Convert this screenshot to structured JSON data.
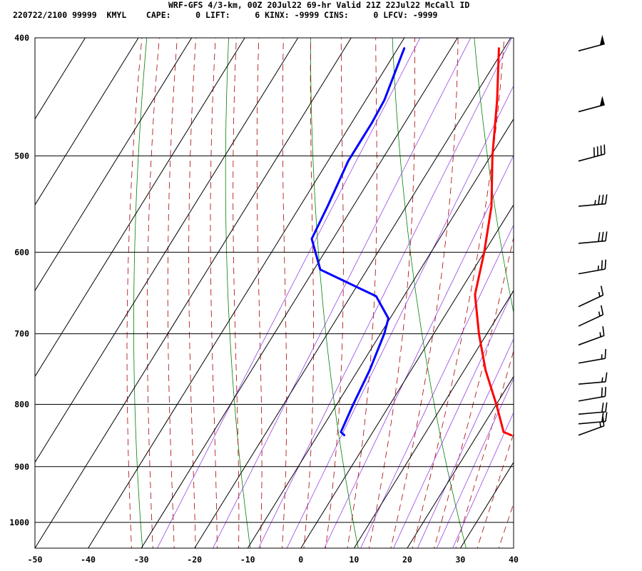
{
  "header": {
    "line1": "WRF-GFS 4/3-km, 00Z 20Jul22 69-hr Valid 21Z 22Jul22 McCall ID",
    "line2": "220722/2100 99999  KMYL    CAPE:     0 LIFT:     6 KINX: -9999 CINS:     0 LFCV: -9999"
  },
  "chart_data": {
    "type": "line",
    "subtype": "skew-T log-p sounding",
    "title": "WRF-GFS 4/3-km, 00Z 20Jul22 69-hr Valid 21Z 22Jul22 McCall ID",
    "xlabel": "",
    "ylabel": "",
    "xlim": [
      -50,
      40
    ],
    "ylim": [
      1050,
      400
    ],
    "y_scale": "log",
    "x_ticks": [
      -50,
      -40,
      -30,
      -20,
      -10,
      0,
      10,
      20,
      30,
      40
    ],
    "y_ticks": [
      400,
      500,
      600,
      700,
      800,
      900,
      1000
    ],
    "grid": true,
    "skewed_isotherms": true,
    "background_lines": {
      "dry_adiabats_color": "#008000",
      "moist_adiabats_color": "#aa0000",
      "mixing_ratio_color": "#8a2be2"
    },
    "series": [
      {
        "color": "#ff0000",
        "points": [
          {
            "p": 848,
            "t": 26.4
          },
          {
            "p": 843,
            "t": 24.6
          },
          {
            "p": 800,
            "t": 20.0
          },
          {
            "p": 750,
            "t": 14.0
          },
          {
            "p": 700,
            "t": 8.5
          },
          {
            "p": 650,
            "t": 3.2
          },
          {
            "p": 620,
            "t": 1.3
          },
          {
            "p": 600,
            "t": 0.0
          },
          {
            "p": 550,
            "t": -4.0
          },
          {
            "p": 500,
            "t": -9.7
          },
          {
            "p": 450,
            "t": -15.3
          },
          {
            "p": 408,
            "t": -21.0
          }
        ]
      },
      {
        "color": "#0000ff",
        "points": [
          {
            "p": 848,
            "t": -5.0
          },
          {
            "p": 843,
            "t": -6.0
          },
          {
            "p": 800,
            "t": -6.9
          },
          {
            "p": 750,
            "t": -7.8
          },
          {
            "p": 700,
            "t": -9.3
          },
          {
            "p": 680,
            "t": -10.3
          },
          {
            "p": 652,
            "t": -15.2
          },
          {
            "p": 620,
            "t": -28.8
          },
          {
            "p": 585,
            "t": -34.0
          },
          {
            "p": 550,
            "t": -34.8
          },
          {
            "p": 505,
            "t": -36.2
          },
          {
            "p": 470,
            "t": -36.2
          },
          {
            "p": 450,
            "t": -36.5
          },
          {
            "p": 408,
            "t": -38.8
          }
        ]
      }
    ],
    "wind_barbs": [
      {
        "p": 410,
        "dir": 255,
        "speed": 50
      },
      {
        "p": 460,
        "dir": 255,
        "speed": 50
      },
      {
        "p": 505,
        "dir": 255,
        "speed": 40
      },
      {
        "p": 550,
        "dir": 265,
        "speed": 35
      },
      {
        "p": 590,
        "dir": 265,
        "speed": 30
      },
      {
        "p": 625,
        "dir": 260,
        "speed": 25
      },
      {
        "p": 665,
        "dir": 245,
        "speed": 15
      },
      {
        "p": 690,
        "dir": 245,
        "speed": 15
      },
      {
        "p": 715,
        "dir": 250,
        "speed": 15
      },
      {
        "p": 740,
        "dir": 260,
        "speed": 15
      },
      {
        "p": 770,
        "dir": 265,
        "speed": 15
      },
      {
        "p": 795,
        "dir": 260,
        "speed": 20
      },
      {
        "p": 815,
        "dir": 265,
        "speed": 20
      },
      {
        "p": 830,
        "dir": 265,
        "speed": 20
      },
      {
        "p": 848,
        "dir": 250,
        "speed": 15
      }
    ]
  }
}
